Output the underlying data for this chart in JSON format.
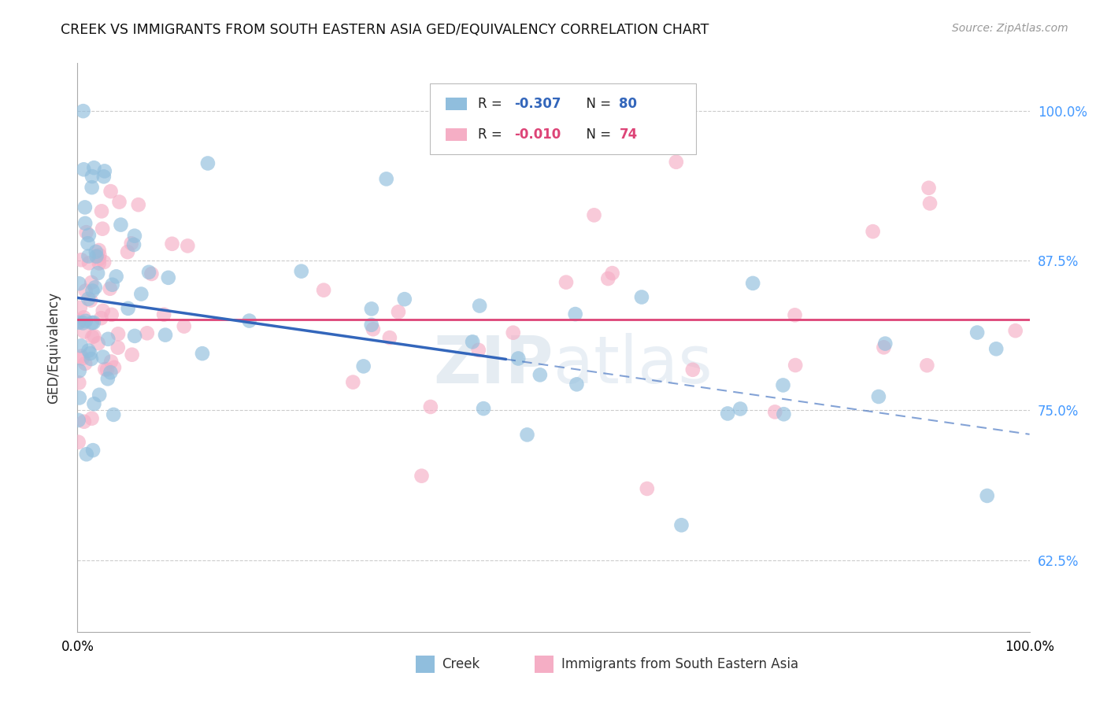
{
  "title": "CREEK VS IMMIGRANTS FROM SOUTH EASTERN ASIA GED/EQUIVALENCY CORRELATION CHART",
  "source": "Source: ZipAtlas.com",
  "ylabel": "GED/Equivalency",
  "ytick_labels": [
    "62.5%",
    "75.0%",
    "87.5%",
    "100.0%"
  ],
  "ytick_values": [
    0.625,
    0.75,
    0.875,
    1.0
  ],
  "legend_label_creek": "Creek",
  "legend_label_sea": "Immigrants from South Eastern Asia",
  "bg_color": "#ffffff",
  "grid_color": "#cccccc",
  "creek_color": "#90bedd",
  "sea_color": "#f5aec5",
  "creek_line_color": "#3366bb",
  "sea_line_color": "#dd4477",
  "creek_R": -0.307,
  "sea_R": -0.01,
  "creek_N": 80,
  "sea_N": 74,
  "xlim": [
    0.0,
    1.0
  ],
  "ylim": [
    0.565,
    1.04
  ]
}
